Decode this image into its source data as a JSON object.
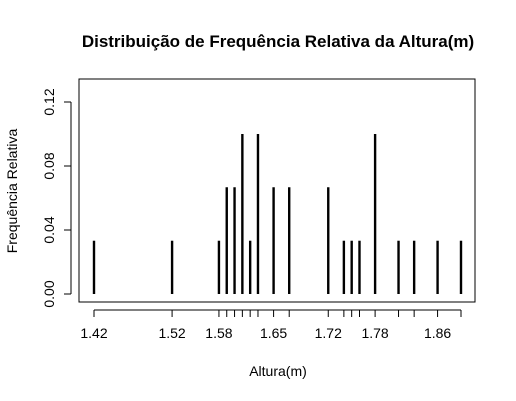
{
  "chart_data": {
    "type": "bar",
    "title": "Distribuição de Frequência Relativa da Altura(m)",
    "xlabel": "Altura(m)",
    "ylabel": "Frequência Relativa",
    "x_tick_labels": [
      "1.42",
      "1.52",
      "1.58",
      "1.65",
      "1.72",
      "1.78",
      "1.86"
    ],
    "x_ticks": [
      1.42,
      1.52,
      1.58,
      1.59,
      1.6,
      1.61,
      1.62,
      1.63,
      1.65,
      1.67,
      1.72,
      1.74,
      1.75,
      1.76,
      1.78,
      1.81,
      1.83,
      1.86,
      1.89
    ],
    "y_ticks": [
      0.0,
      0.04,
      0.08,
      0.12
    ],
    "y_tick_labels": [
      "0.00",
      "0.04",
      "0.08",
      "0.12"
    ],
    "xlim": [
      1.4,
      1.9
    ],
    "ylim": [
      0.0,
      0.1333
    ],
    "grid": false,
    "legend": "none",
    "x": [
      1.42,
      1.52,
      1.58,
      1.59,
      1.6,
      1.61,
      1.62,
      1.63,
      1.65,
      1.67,
      1.72,
      1.74,
      1.75,
      1.76,
      1.78,
      1.81,
      1.83,
      1.86,
      1.89
    ],
    "values": [
      0.0333,
      0.0333,
      0.0333,
      0.0667,
      0.0667,
      0.1,
      0.0333,
      0.1,
      0.0667,
      0.0667,
      0.0667,
      0.0333,
      0.0333,
      0.0333,
      0.1,
      0.0333,
      0.0333,
      0.0333,
      0.0333
    ]
  }
}
